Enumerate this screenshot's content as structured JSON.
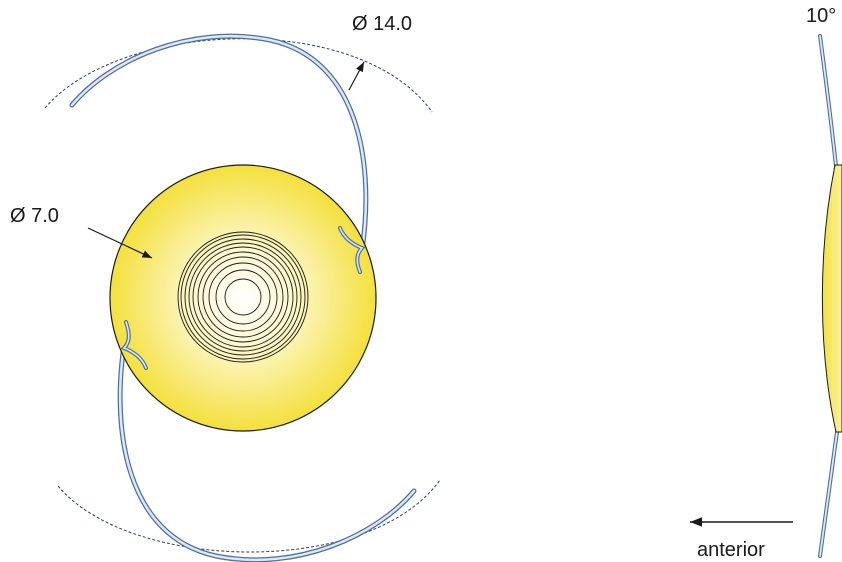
{
  "labels": {
    "outer_diameter": "Ø 14.0",
    "optic_diameter": "Ø 7.0",
    "angle": "10°",
    "direction": "anterior"
  }
}
